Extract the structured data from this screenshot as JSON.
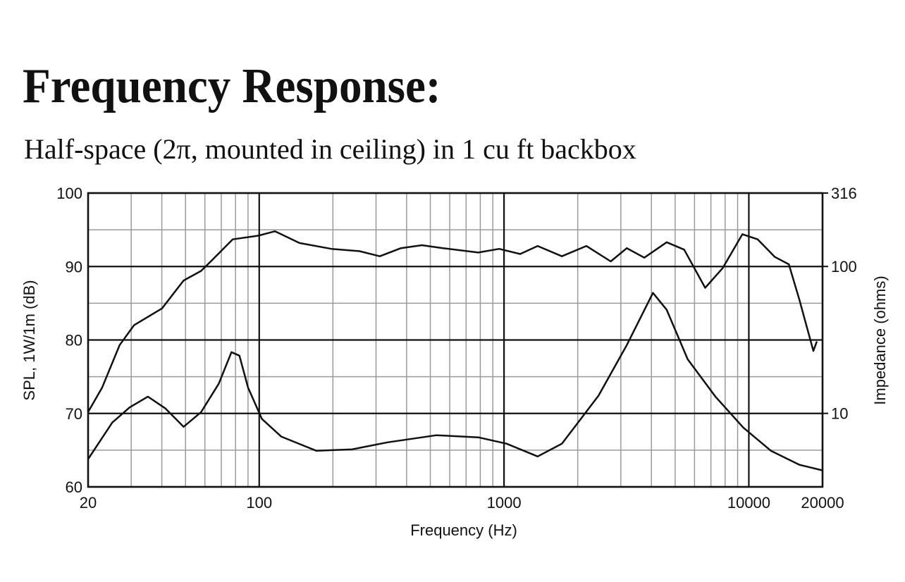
{
  "chart_data": {
    "type": "line",
    "title": "Frequency Response:",
    "subtitle": "Half-space (2π, mounted in ceiling) in 1 cu ft backbox",
    "xlabel": "Frequency (Hz)",
    "ylabel": "SPL, 1W/1m (dB)",
    "y2label": "Impedance (ohms)",
    "xscale": "log",
    "y2scale": "log",
    "grid": true,
    "xlim": [
      20,
      20000
    ],
    "xticks": [
      20,
      100,
      1000,
      10000,
      20000
    ],
    "x_minor_grid": [
      30,
      40,
      50,
      60,
      70,
      80,
      90,
      200,
      300,
      400,
      500,
      600,
      700,
      800,
      900,
      2000,
      3000,
      4000,
      5000,
      6000,
      7000,
      8000,
      9000
    ],
    "ylim": [
      60,
      100
    ],
    "yticks": [
      60,
      70,
      80,
      90,
      100
    ],
    "y_minor_grid": [
      65,
      75,
      85,
      95
    ],
    "y2lim": [
      3.16,
      316
    ],
    "y2ticks": [
      10,
      100,
      316
    ],
    "series": [
      {
        "color": "#111111",
        "x": [
          20,
          22.8,
          26.9,
          30.8,
          34.1,
          40.1,
          49.1,
          57.9,
          63.9,
          77.9,
          99,
          116,
          146,
          197,
          256,
          311,
          379,
          462,
          563,
          785,
          955,
          1164,
          1372,
          1723,
          2169,
          2729,
          3173,
          3740,
          4617,
          5443,
          6634,
          7826,
          9410,
          10870,
          12780,
          14570,
          16080,
          18350,
          18950
        ],
        "values": [
          70.2,
          73.5,
          79.3,
          82.0,
          82.9,
          84.3,
          88.1,
          89.4,
          90.8,
          93.7,
          94.2,
          94.8,
          93.2,
          92.4,
          92.1,
          91.4,
          92.5,
          92.9,
          92.5,
          91.9,
          92.4,
          91.7,
          92.8,
          91.4,
          92.8,
          90.7,
          92.5,
          91.2,
          93.3,
          92.3,
          87.1,
          89.8,
          94.4,
          93.7,
          91.3,
          90.3,
          85.5,
          78.5,
          79.8
        ]
      },
      {
        "color": "#111111",
        "axis": "y2",
        "x": [
          20,
          25.1,
          29.6,
          35.1,
          41.4,
          49.1,
          57.9,
          68.3,
          77,
          83,
          90,
          102.6,
          123,
          171,
          240,
          334,
          530,
          785,
          1024,
          1372,
          1723,
          2432,
          3174,
          4059,
          4617,
          5624,
          7302,
          9480,
          12300,
          16080,
          20000
        ],
        "values": [
          4.88,
          8.66,
          11.0,
          13.0,
          10.8,
          8.11,
          10.2,
          15.9,
          26.1,
          24.7,
          15.0,
          9.16,
          6.95,
          5.57,
          5.69,
          6.35,
          7.1,
          6.87,
          6.22,
          5.09,
          6.22,
          13.2,
          29.2,
          66.1,
          50.7,
          23.4,
          13.0,
          8.02,
          5.57,
          4.47,
          4.09
        ]
      }
    ]
  }
}
